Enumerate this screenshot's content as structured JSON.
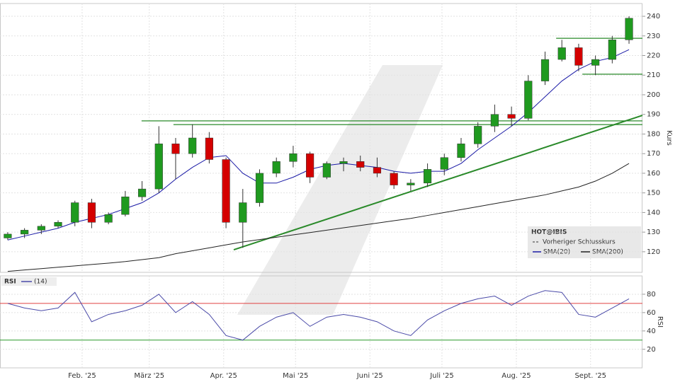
{
  "chart_data": [
    {
      "type": "candlestick",
      "title": "HOT@IBIS",
      "y_label": "Kurs",
      "x": [
        0,
        1,
        2,
        3,
        4,
        5,
        6,
        7,
        8,
        9,
        10,
        11,
        12,
        13,
        14,
        15,
        16,
        17,
        18,
        19,
        20,
        21,
        22,
        23,
        24,
        25,
        26,
        27,
        28,
        29,
        30,
        31,
        32,
        33,
        34,
        35,
        36,
        37
      ],
      "xlim": [
        -0.46,
        37.8
      ],
      "xticks": [
        {
          "value": 4.43,
          "label": "Feb. '25"
        },
        {
          "value": 8.43,
          "label": "März '25"
        },
        {
          "value": 12.86,
          "label": "Apr. '25"
        },
        {
          "value": 17.14,
          "label": "Mai '25"
        },
        {
          "value": 21.57,
          "label": "Juni '25"
        },
        {
          "value": 25.86,
          "label": "Juli '25"
        },
        {
          "value": 30.29,
          "label": "Aug. '25"
        },
        {
          "value": 34.71,
          "label": "Sept. '25"
        }
      ],
      "ylim": [
        109.5,
        246.5
      ],
      "yticks": [
        120,
        130,
        140,
        150,
        160,
        170,
        180,
        190,
        200,
        210,
        220,
        230,
        240
      ],
      "grid": true,
      "up_color": "#1f9a1f",
      "down_color": "#d40000",
      "open": [
        127,
        129,
        131,
        133,
        135,
        145,
        135,
        139,
        148,
        152,
        175,
        170,
        178,
        167,
        135,
        145,
        160,
        166,
        170,
        158,
        165,
        166,
        163,
        160,
        154,
        155,
        162,
        168,
        175,
        184,
        190,
        188,
        207,
        218,
        224,
        215,
        218,
        228
      ],
      "high": [
        130,
        132,
        134,
        136,
        146,
        147,
        140,
        151,
        156,
        184,
        178,
        185,
        181,
        168,
        152,
        162,
        168,
        174,
        171,
        166,
        168,
        169,
        168,
        161,
        157,
        165,
        170,
        178,
        186,
        195,
        194,
        210,
        222,
        228,
        226,
        220,
        230,
        240
      ],
      "low": [
        126,
        127,
        129,
        132,
        133,
        132,
        134,
        138,
        146,
        150,
        157,
        168,
        165,
        132,
        122,
        143,
        158,
        163,
        155,
        157,
        161,
        161,
        158,
        152,
        151,
        153,
        159,
        166,
        173,
        181,
        184,
        187,
        205,
        217,
        212,
        210,
        216,
        226
      ],
      "close": [
        129,
        131,
        133,
        135,
        145,
        135,
        139,
        148,
        152,
        175,
        170,
        178,
        167,
        135,
        145,
        160,
        166,
        170,
        158,
        165,
        166,
        163,
        160,
        154,
        155,
        162,
        168,
        175,
        184,
        190,
        188,
        207,
        218,
        224,
        215,
        218,
        228,
        239
      ],
      "series": [
        {
          "name": "SMA(20)",
          "color": "#1a1aa6",
          "values": [
            126,
            128,
            130,
            132,
            135,
            137,
            139,
            142,
            145,
            150,
            157,
            163,
            168,
            169,
            160,
            155,
            155,
            158,
            162,
            164,
            165,
            164,
            163,
            161,
            160,
            161,
            161,
            165,
            172,
            178,
            184,
            191,
            199,
            207,
            213,
            217,
            219,
            223
          ]
        },
        {
          "name": "SMA(200)",
          "color": "#222222",
          "values": [
            110,
            110.7,
            111.4,
            112.1,
            112.8,
            113.5,
            114.2,
            115,
            116,
            117,
            119,
            120.5,
            122,
            123.5,
            125,
            126.2,
            127.4,
            128.6,
            129.8,
            131,
            132.2,
            133.4,
            134.6,
            135.8,
            137,
            138.5,
            140,
            141.5,
            143,
            144.5,
            146,
            147.5,
            149,
            151,
            153,
            156,
            160,
            165
          ]
        }
      ],
      "reference_line": {
        "name": "Vorheriger Schlusskurs",
        "color": "#333333"
      },
      "levels": [
        {
          "value": 186.7,
          "from": 7.97
        },
        {
          "value": 184.8,
          "from": 9.87
        },
        {
          "value": 228.8,
          "from": 32.66
        },
        {
          "value": 210.5,
          "from": 34.22
        }
      ],
      "level_color": "#2a8a2a",
      "trendline": {
        "x": [
          13.46,
          37.8
        ],
        "y": [
          121,
          189.5
        ],
        "color": "#2a8a2a"
      }
    },
    {
      "type": "line",
      "title": "RSI",
      "y_label": "RSI",
      "ylim": [
        0,
        100
      ],
      "yticks": [
        20,
        40,
        60,
        80
      ],
      "grid": true,
      "series": [
        {
          "name": "(14)",
          "color": "#4a4aa8",
          "values": [
            70,
            65,
            62,
            65,
            82,
            50,
            58,
            62,
            68,
            80,
            60,
            72,
            58,
            35,
            30,
            45,
            55,
            60,
            45,
            55,
            58,
            55,
            50,
            40,
            35,
            52,
            62,
            70,
            75,
            78,
            68,
            78,
            84,
            82,
            58,
            55,
            65,
            75
          ]
        }
      ],
      "levels": [
        {
          "value": 70,
          "color": "#e04040"
        },
        {
          "value": 30,
          "color": "#2a9a2a"
        }
      ]
    }
  ]
}
